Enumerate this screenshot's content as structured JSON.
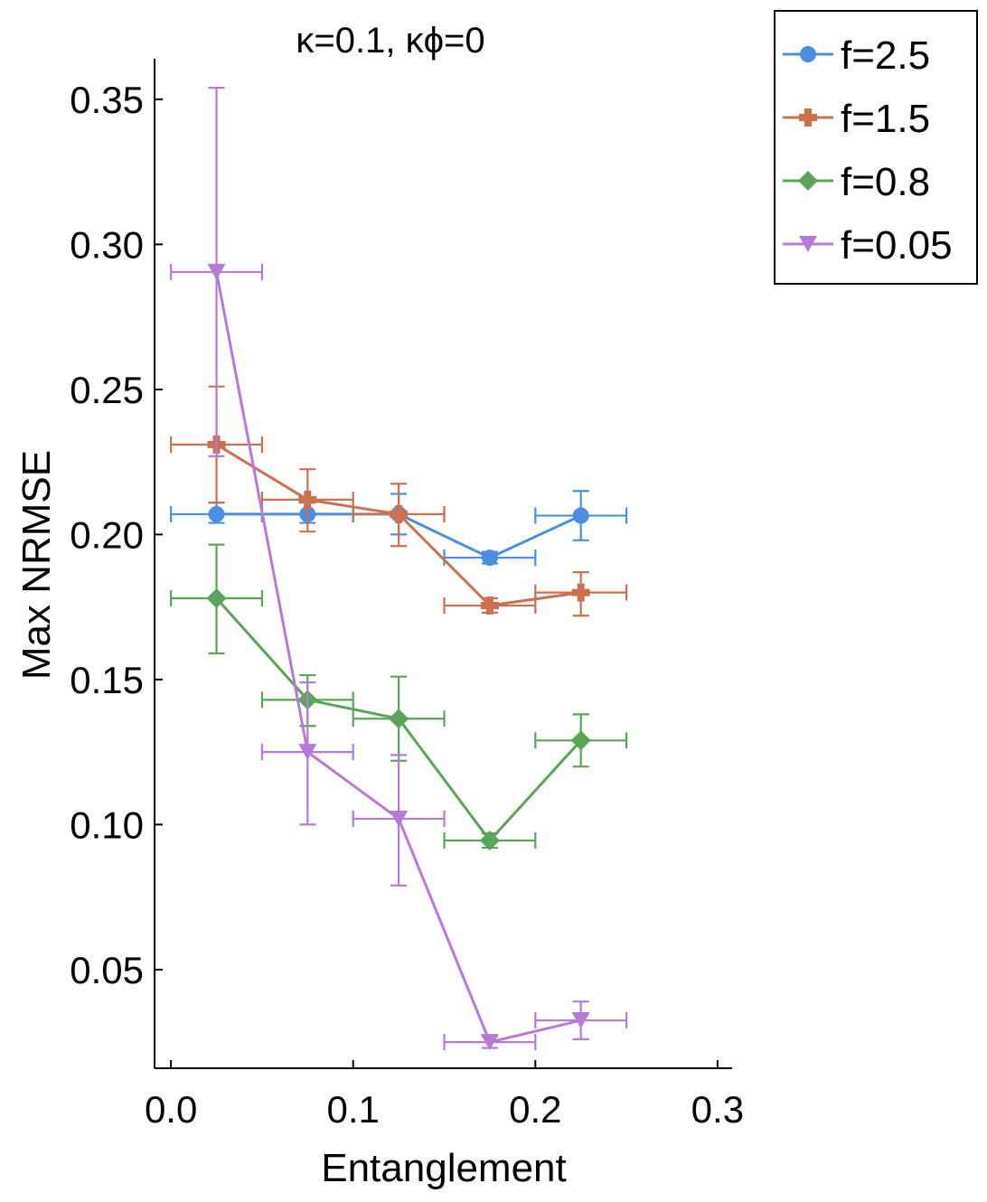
{
  "chart_data": {
    "type": "line",
    "title": "κ=0.1, κϕ=0",
    "xlabel": "Entanglement",
    "ylabel": "Max NRMSE",
    "xlim": [
      -0.009,
      0.308
    ],
    "ylim": [
      0.016,
      0.364
    ],
    "x_ticks": [
      0.0,
      0.1,
      0.2,
      0.3
    ],
    "x_tick_labels": [
      "0.0",
      "0.1",
      "0.2",
      "0.3"
    ],
    "y_ticks": [
      0.05,
      0.1,
      0.15,
      0.2,
      0.25,
      0.3,
      0.35
    ],
    "y_tick_labels": [
      "0.05",
      "0.10",
      "0.15",
      "0.20",
      "0.25",
      "0.30",
      "0.35"
    ],
    "grid": false,
    "legend_position": "outside-top-right",
    "x": [
      0.025,
      0.075,
      0.125,
      0.175,
      0.225
    ],
    "x_error": 0.025,
    "series": [
      {
        "name": "f=2.5",
        "color": "#4a90e2",
        "marker": "circle",
        "values": [
          0.207,
          0.207,
          0.207,
          0.192,
          0.2065
        ],
        "y_error_low": [
          0.204,
          0.204,
          0.2,
          0.19,
          0.198
        ],
        "y_error_high": [
          0.211,
          0.211,
          0.214,
          0.194,
          0.215
        ]
      },
      {
        "name": "f=1.5",
        "color": "#cc7050",
        "marker": "cross",
        "values": [
          0.231,
          0.212,
          0.207,
          0.1755,
          0.18
        ],
        "y_error_low": [
          0.211,
          0.201,
          0.196,
          0.173,
          0.172
        ],
        "y_error_high": [
          0.251,
          0.2225,
          0.2175,
          0.178,
          0.187
        ]
      },
      {
        "name": "f=0.8",
        "color": "#5aa55a",
        "marker": "diamond",
        "values": [
          0.178,
          0.143,
          0.1365,
          0.0945,
          0.129
        ],
        "y_error_low": [
          0.159,
          0.134,
          0.122,
          0.092,
          0.12
        ],
        "y_error_high": [
          0.1965,
          0.1515,
          0.151,
          0.097,
          0.138
        ]
      },
      {
        "name": "f=0.05",
        "color": "#b57bd6",
        "marker": "triangle-down",
        "values": [
          0.2905,
          0.125,
          0.102,
          0.025,
          0.0325
        ],
        "y_error_low": [
          0.227,
          0.1,
          0.079,
          0.023,
          0.026
        ],
        "y_error_high": [
          0.354,
          0.149,
          0.124,
          0.027,
          0.039
        ]
      }
    ]
  }
}
